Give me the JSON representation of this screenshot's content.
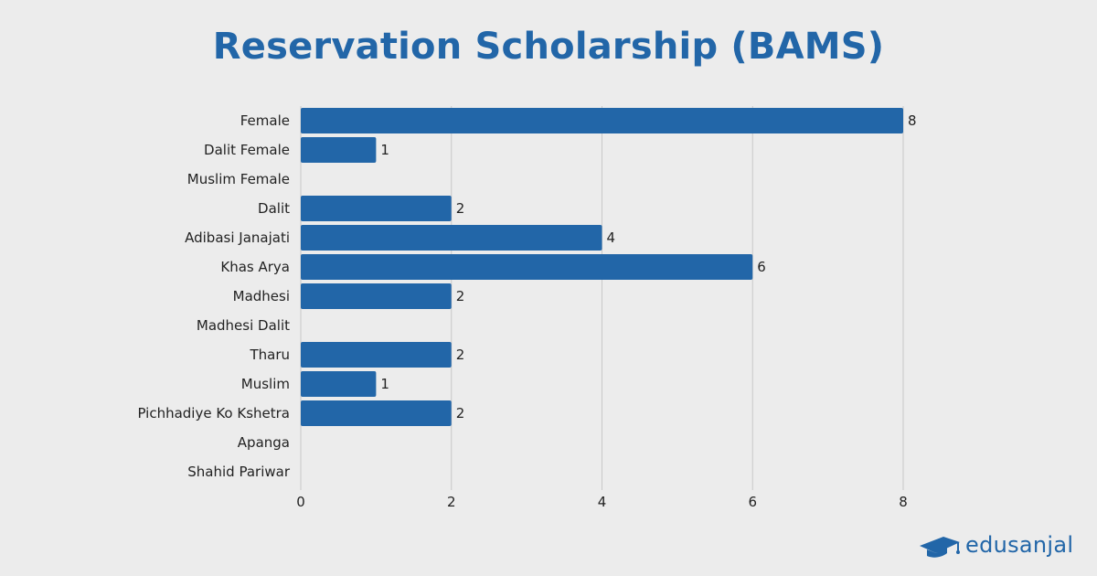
{
  "chart_data": {
    "type": "bar",
    "orientation": "horizontal",
    "title": "Reservation Scholarship (BAMS)",
    "xlabel": "",
    "ylabel": "",
    "categories": [
      "Female",
      "Dalit Female",
      "Muslim Female",
      "Dalit",
      "Adibasi Janajati",
      "Khas Arya",
      "Madhesi",
      "Madhesi Dalit",
      "Tharu",
      "Muslim",
      "Pichhadiye Ko Kshetra",
      "Apanga",
      "Shahid Pariwar"
    ],
    "values": [
      8,
      1,
      0,
      2,
      4,
      6,
      2,
      0,
      2,
      1,
      2,
      0,
      0
    ],
    "xlim": [
      0,
      8
    ],
    "x_ticks": [
      0,
      2,
      4,
      6,
      8
    ],
    "grid": "vertical",
    "show_data_labels": true,
    "bar_color": "#2266a8",
    "grid_color": "#c8c8c8",
    "text_color": "#222222"
  },
  "branding": {
    "logo_text": "edusanjal",
    "logo_icon": "graduation-cap-icon",
    "color": "#2266a8"
  }
}
